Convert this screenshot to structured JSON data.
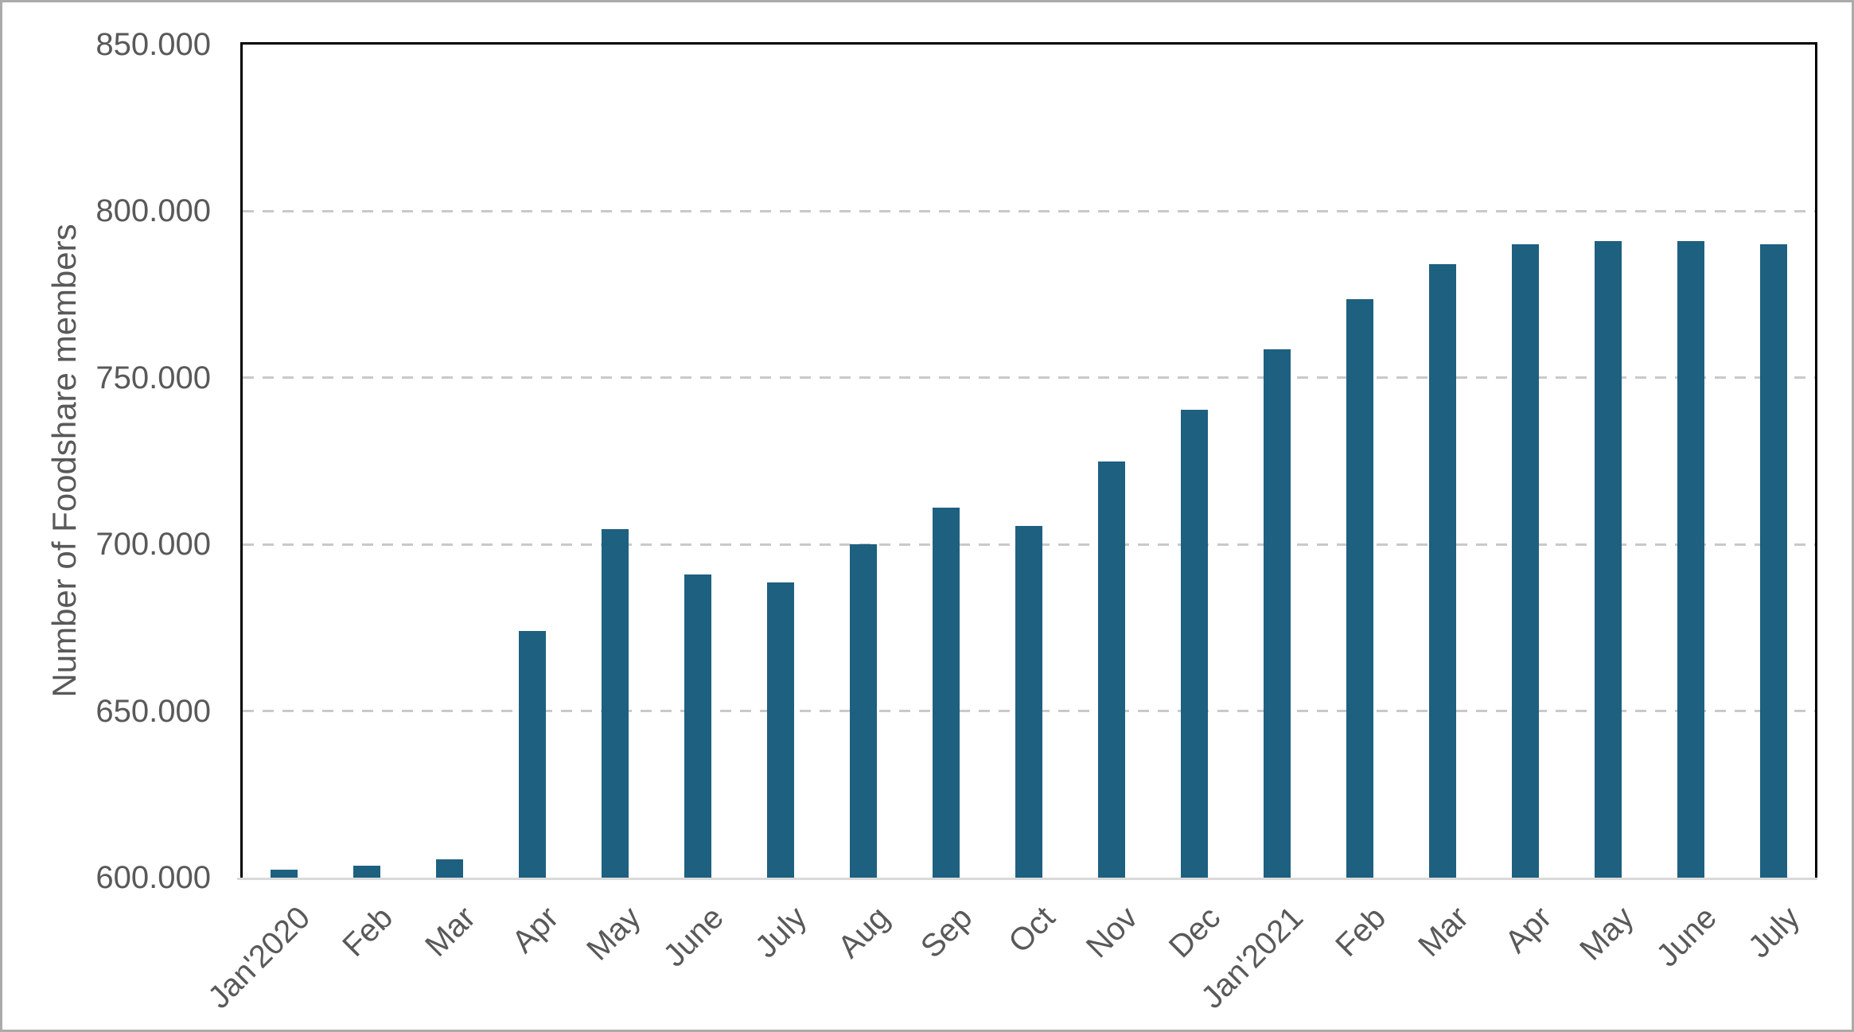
{
  "chart_data": {
    "type": "bar",
    "title": "",
    "ylabel": "Number of Foodshare members",
    "xlabel": "",
    "categories": [
      "Jan'2020",
      "Feb",
      "Mar",
      "Apr",
      "May",
      "June",
      "July",
      "Aug",
      "Sep",
      "Oct",
      "Nov",
      "Dec",
      "Jan'2021",
      "Feb",
      "Mar",
      "Apr",
      "May",
      "June",
      "July"
    ],
    "values": [
      602500,
      603500,
      605500,
      674000,
      704500,
      691000,
      688500,
      700000,
      711000,
      705500,
      725000,
      740500,
      758500,
      773500,
      784000,
      790000,
      791000,
      791000,
      790000
    ],
    "ylim": [
      600000,
      850000
    ],
    "ytick_interval": 50000,
    "ytick_labels": [
      "600.000",
      "650.000",
      "700.000",
      "750.000",
      "800.000",
      "850.000"
    ],
    "legend_position": "none",
    "grid": "horizontal-dashed",
    "colors": {
      "bar": "#1e6080",
      "axis_text": "#595959",
      "gridline": "#c9c9c9",
      "axis_line": "#d9d9d9",
      "plot_border": "#000000",
      "frame_border": "#ababab",
      "background": "#ffffff"
    }
  }
}
